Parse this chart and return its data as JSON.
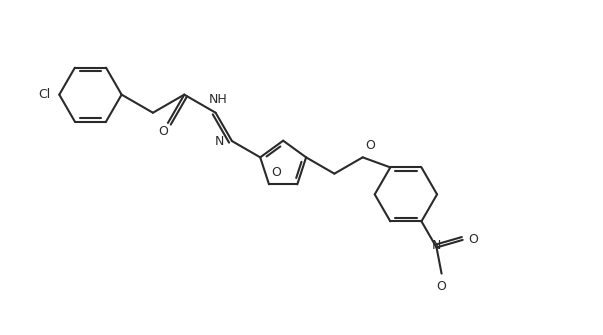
{
  "background": "#ffffff",
  "line_color": "#2a2a2a",
  "lw": 1.5,
  "fs": 9.0,
  "figsize": [
    6.03,
    3.35
  ],
  "dpi": 100,
  "xlim": [
    0,
    12
  ],
  "ylim": [
    -1.5,
    5.0
  ]
}
